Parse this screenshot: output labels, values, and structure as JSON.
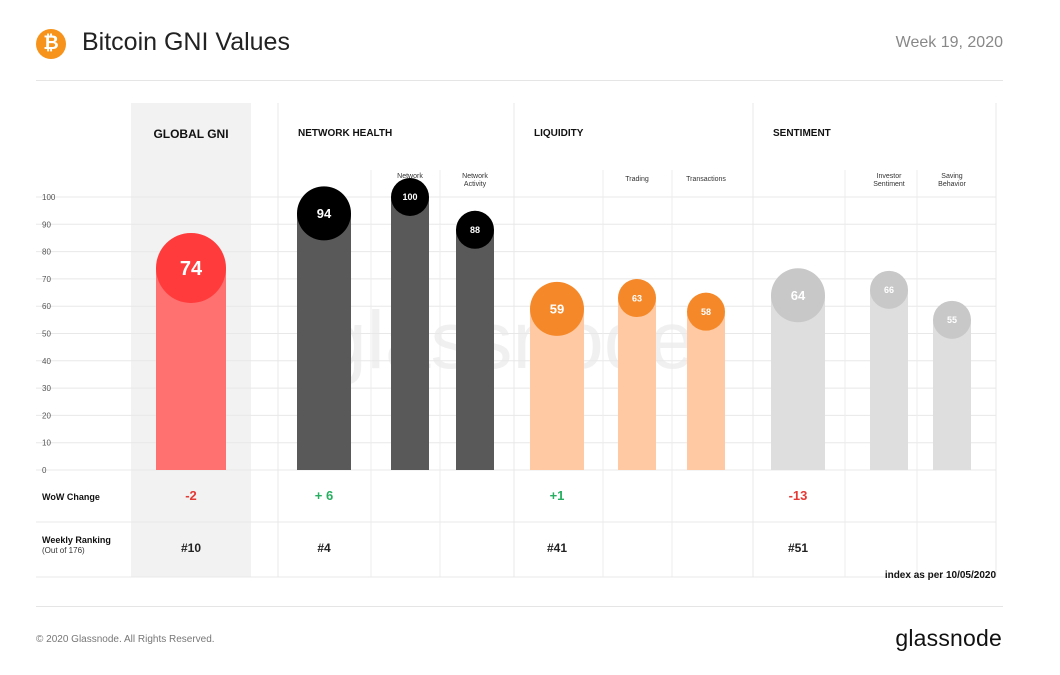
{
  "header": {
    "logo_symbol": "₿",
    "title": "Bitcoin GNI Values",
    "week": "Week 19, 2020"
  },
  "footer": {
    "copyright": "© 2020 Glassnode. All Rights Reserved.",
    "brand": "glassnode",
    "note": "index as per 10/05/2020"
  },
  "watermark": "glassnode",
  "chart_data": {
    "type": "bar",
    "title": "Bitcoin GNI Values",
    "ylim": [
      0,
      100
    ],
    "yticks": [
      0,
      10,
      20,
      30,
      40,
      50,
      60,
      70,
      80,
      90,
      100
    ],
    "grid": true,
    "groups": [
      {
        "name": "GLOBAL GNI",
        "color": "#ff3b3b",
        "bar_color": "#ff7070",
        "label_color": "#ffffff",
        "bars": [
          {
            "label": "",
            "value": 74
          }
        ],
        "wow": "-2",
        "wow_color": "#e53935",
        "rank": "#10"
      },
      {
        "name": "NETWORK HEALTH",
        "color": "#000000",
        "bar_color": "#595959",
        "label_color": "#ffffff",
        "bars": [
          {
            "label": "",
            "value": 94
          },
          {
            "label": "Network\nGrowth",
            "value": 100
          },
          {
            "label": "Network\nActivity",
            "value": 88
          }
        ],
        "wow": "+ 6",
        "wow_color": "#27ae60",
        "rank": "#4"
      },
      {
        "name": "LIQUIDITY",
        "color": "#f5892a",
        "bar_color": "#ffc9a3",
        "label_color": "#ffffff",
        "bars": [
          {
            "label": "",
            "value": 59
          },
          {
            "label": "Trading",
            "value": 63
          },
          {
            "label": "Transactions",
            "value": 58
          }
        ],
        "wow": "+1",
        "wow_color": "#27ae60",
        "rank": "#41"
      },
      {
        "name": "SENTIMENT",
        "color": "#c8c8c8",
        "bar_color": "#dedede",
        "label_color": "#ffffff",
        "bars": [
          {
            "label": "",
            "value": 64
          },
          {
            "label": "Investor\nSentiment",
            "value": 66
          },
          {
            "label": "Saving\nBehavior",
            "value": 55
          }
        ],
        "wow": "-13",
        "wow_color": "#e53935",
        "rank": "#51"
      }
    ],
    "rows": {
      "wow_label": "WoW  Change",
      "rank_label": "Weekly Ranking",
      "rank_sublabel": "(Out of 176)"
    }
  }
}
